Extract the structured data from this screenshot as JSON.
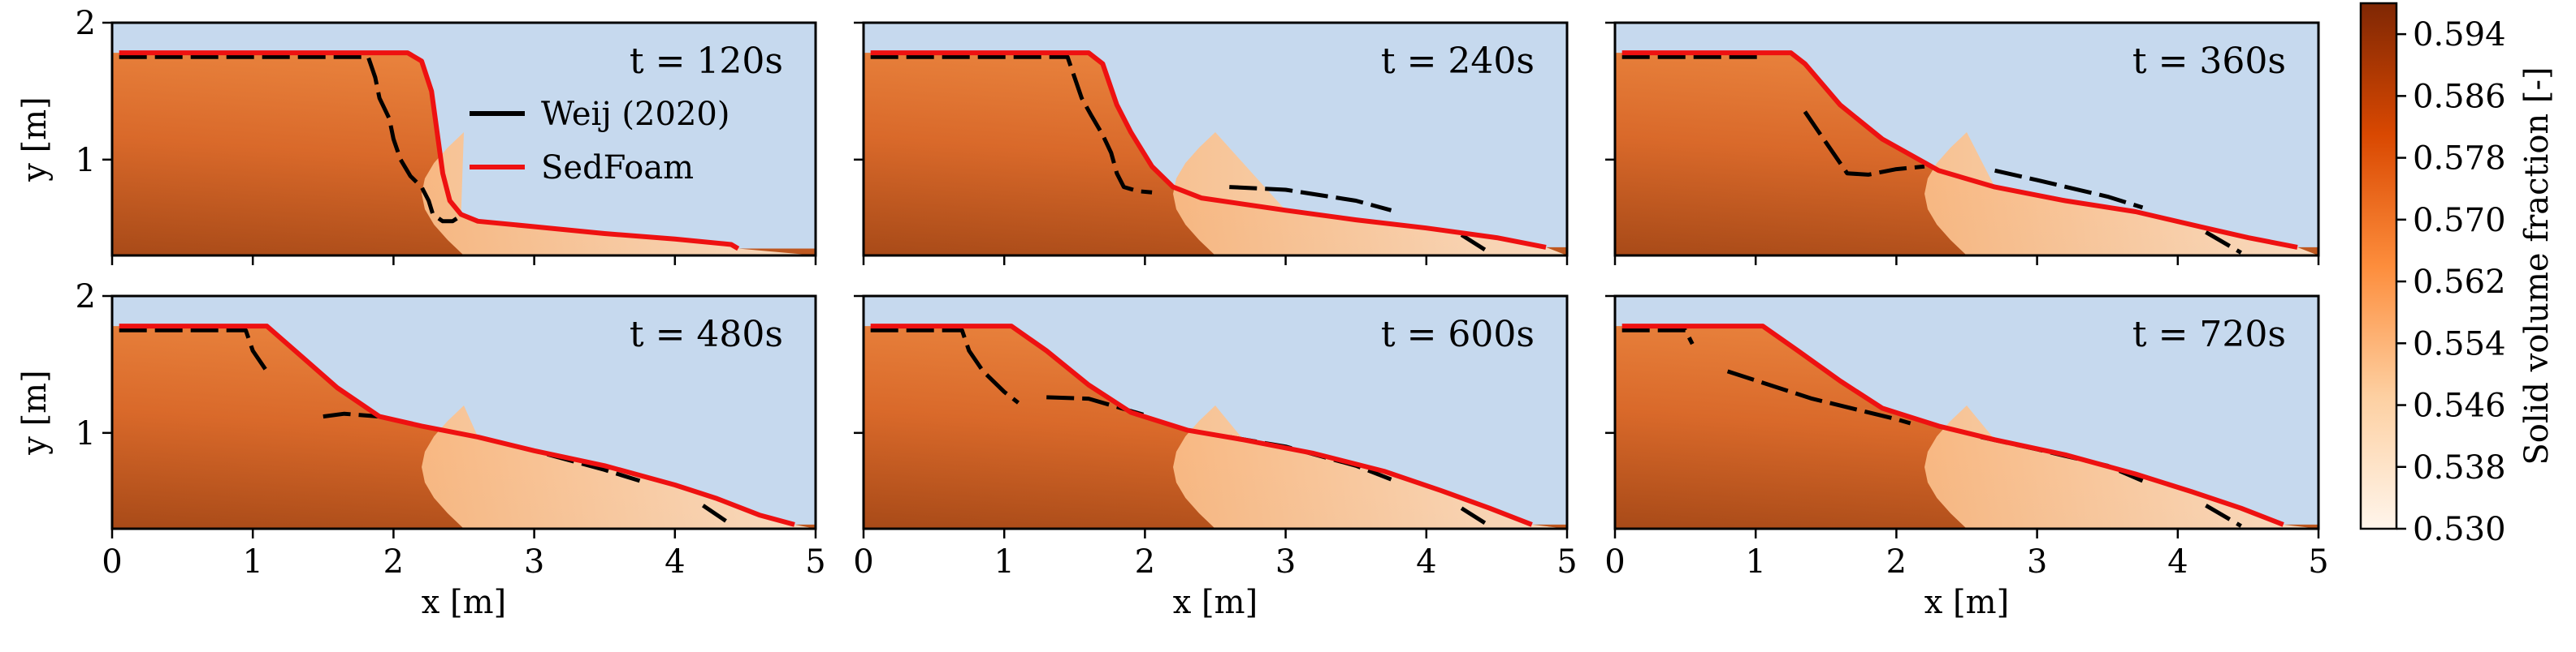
{
  "chart_data": [
    {
      "type": "line",
      "title": "t = 120s",
      "xlabel": "x [m]",
      "ylabel": "y [m]",
      "xlim": [
        0,
        5
      ],
      "ylim": [
        0.3,
        2.0
      ],
      "series": [
        {
          "name": "Weij (2020)",
          "color": "#000000",
          "style": "dashed",
          "segments": [
            [
              [
                0.05,
                1.75
              ],
              [
                1.0,
                1.75
              ],
              [
                1.82,
                1.75
              ],
              [
                1.87,
                1.6
              ],
              [
                1.9,
                1.45
              ],
              [
                1.97,
                1.3
              ],
              [
                2.0,
                1.15
              ],
              [
                2.05,
                1.0
              ],
              [
                2.12,
                0.88
              ],
              [
                2.2,
                0.8
              ],
              [
                2.25,
                0.7
              ],
              [
                2.28,
                0.6
              ],
              [
                2.35,
                0.55
              ],
              [
                2.42,
                0.55
              ],
              [
                2.45,
                0.57
              ]
            ]
          ]
        },
        {
          "name": "SedFoam",
          "color": "#ee1111",
          "style": "solid",
          "points": [
            [
              0.05,
              1.78
            ],
            [
              2.1,
              1.78
            ],
            [
              2.2,
              1.72
            ],
            [
              2.27,
              1.5
            ],
            [
              2.31,
              1.2
            ],
            [
              2.35,
              0.9
            ],
            [
              2.4,
              0.7
            ],
            [
              2.48,
              0.6
            ],
            [
              2.6,
              0.55
            ],
            [
              3.0,
              0.51
            ],
            [
              3.5,
              0.46
            ],
            [
              4.0,
              0.42
            ],
            [
              4.4,
              0.38
            ],
            [
              4.45,
              0.35
            ]
          ]
        }
      ]
    },
    {
      "type": "line",
      "title": "t = 240s",
      "xlabel": "",
      "ylabel": "",
      "xlim": [
        0,
        5
      ],
      "ylim": [
        0.3,
        2.0
      ],
      "series": [
        {
          "name": "Weij (2020)",
          "color": "#000000",
          "style": "dashed",
          "segments": [
            [
              [
                0.05,
                1.75
              ],
              [
                1.45,
                1.75
              ],
              [
                1.5,
                1.6
              ],
              [
                1.55,
                1.45
              ],
              [
                1.62,
                1.32
              ],
              [
                1.7,
                1.18
              ],
              [
                1.76,
                1.05
              ],
              [
                1.8,
                0.9
              ],
              [
                1.85,
                0.8
              ],
              [
                1.95,
                0.77
              ],
              [
                2.05,
                0.76
              ]
            ],
            [
              [
                2.6,
                0.8
              ],
              [
                3.0,
                0.78
              ],
              [
                3.5,
                0.7
              ],
              [
                3.75,
                0.63
              ]
            ],
            [
              [
                4.25,
                0.45
              ],
              [
                4.45,
                0.32
              ]
            ]
          ]
        },
        {
          "name": "SedFoam",
          "color": "#ee1111",
          "style": "solid",
          "points": [
            [
              0.05,
              1.78
            ],
            [
              1.6,
              1.78
            ],
            [
              1.7,
              1.7
            ],
            [
              1.8,
              1.4
            ],
            [
              1.9,
              1.2
            ],
            [
              2.05,
              0.95
            ],
            [
              2.2,
              0.8
            ],
            [
              2.4,
              0.72
            ],
            [
              3.0,
              0.63
            ],
            [
              3.5,
              0.56
            ],
            [
              4.0,
              0.5
            ],
            [
              4.5,
              0.43
            ],
            [
              4.85,
              0.36
            ]
          ]
        }
      ]
    },
    {
      "type": "line",
      "title": "t = 360s",
      "xlabel": "",
      "ylabel": "",
      "xlim": [
        0,
        5
      ],
      "ylim": [
        0.3,
        2.0
      ],
      "series": [
        {
          "name": "Weij (2020)",
          "color": "#000000",
          "style": "dashed",
          "segments": [
            [
              [
                0.05,
                1.75
              ],
              [
                1.05,
                1.75
              ]
            ],
            [
              [
                1.35,
                1.35
              ],
              [
                1.45,
                1.2
              ],
              [
                1.55,
                1.05
              ],
              [
                1.65,
                0.9
              ],
              [
                1.8,
                0.89
              ],
              [
                2.0,
                0.93
              ],
              [
                2.2,
                0.95
              ]
            ],
            [
              [
                2.7,
                0.92
              ],
              [
                3.0,
                0.85
              ],
              [
                3.5,
                0.73
              ],
              [
                3.75,
                0.65
              ]
            ],
            [
              [
                4.2,
                0.47
              ],
              [
                4.45,
                0.32
              ]
            ]
          ]
        },
        {
          "name": "SedFoam",
          "color": "#ee1111",
          "style": "solid",
          "points": [
            [
              0.05,
              1.78
            ],
            [
              1.25,
              1.78
            ],
            [
              1.35,
              1.7
            ],
            [
              1.6,
              1.4
            ],
            [
              1.9,
              1.15
            ],
            [
              2.3,
              0.92
            ],
            [
              2.7,
              0.8
            ],
            [
              3.2,
              0.7
            ],
            [
              3.7,
              0.62
            ],
            [
              4.2,
              0.5
            ],
            [
              4.5,
              0.43
            ],
            [
              4.85,
              0.36
            ]
          ]
        }
      ]
    },
    {
      "type": "line",
      "title": "t = 480s",
      "xlabel": "x [m]",
      "ylabel": "y [m]",
      "xlim": [
        0,
        5
      ],
      "ylim": [
        0.3,
        2.0
      ],
      "series": [
        {
          "name": "Weij (2020)",
          "color": "#000000",
          "style": "dashed",
          "segments": [
            [
              [
                0.05,
                1.75
              ],
              [
                0.95,
                1.75
              ],
              [
                1.0,
                1.6
              ],
              [
                1.1,
                1.45
              ]
            ],
            [
              [
                1.5,
                1.12
              ],
              [
                1.65,
                1.14
              ],
              [
                1.9,
                1.12
              ]
            ],
            [
              [
                2.6,
                0.97
              ],
              [
                3.0,
                0.87
              ],
              [
                3.5,
                0.73
              ],
              [
                3.75,
                0.65
              ]
            ],
            [
              [
                4.2,
                0.47
              ],
              [
                4.4,
                0.33
              ]
            ]
          ]
        },
        {
          "name": "SedFoam",
          "color": "#ee1111",
          "style": "solid",
          "points": [
            [
              0.05,
              1.78
            ],
            [
              1.1,
              1.78
            ],
            [
              1.3,
              1.6
            ],
            [
              1.6,
              1.33
            ],
            [
              1.9,
              1.12
            ],
            [
              2.2,
              1.05
            ],
            [
              2.6,
              0.97
            ],
            [
              3.0,
              0.87
            ],
            [
              3.5,
              0.76
            ],
            [
              4.0,
              0.62
            ],
            [
              4.3,
              0.52
            ],
            [
              4.6,
              0.4
            ],
            [
              4.85,
              0.33
            ]
          ]
        }
      ]
    },
    {
      "type": "line",
      "title": "t = 600s",
      "xlabel": "x [m]",
      "ylabel": "",
      "xlim": [
        0,
        5
      ],
      "ylim": [
        0.3,
        2.0
      ],
      "series": [
        {
          "name": "Weij (2020)",
          "color": "#000000",
          "style": "dashed",
          "segments": [
            [
              [
                0.05,
                1.75
              ],
              [
                0.7,
                1.75
              ],
              [
                0.75,
                1.6
              ],
              [
                0.85,
                1.45
              ],
              [
                1.0,
                1.3
              ],
              [
                1.1,
                1.22
              ]
            ],
            [
              [
                1.3,
                1.26
              ],
              [
                1.6,
                1.25
              ],
              [
                2.0,
                1.13
              ]
            ],
            [
              [
                2.6,
                0.97
              ],
              [
                3.0,
                0.9
              ],
              [
                3.5,
                0.76
              ],
              [
                3.75,
                0.66
              ]
            ],
            [
              [
                4.25,
                0.45
              ],
              [
                4.45,
                0.32
              ]
            ]
          ]
        },
        {
          "name": "SedFoam",
          "color": "#ee1111",
          "style": "solid",
          "points": [
            [
              0.05,
              1.78
            ],
            [
              1.05,
              1.78
            ],
            [
              1.3,
              1.6
            ],
            [
              1.6,
              1.35
            ],
            [
              1.9,
              1.15
            ],
            [
              2.3,
              1.02
            ],
            [
              2.7,
              0.95
            ],
            [
              3.2,
              0.85
            ],
            [
              3.7,
              0.72
            ],
            [
              4.1,
              0.58
            ],
            [
              4.45,
              0.45
            ],
            [
              4.75,
              0.33
            ]
          ]
        }
      ]
    },
    {
      "type": "line",
      "title": "t = 720s",
      "xlabel": "x [m]",
      "ylabel": "",
      "xlim": [
        0,
        5
      ],
      "ylim": [
        0.3,
        2.0
      ],
      "series": [
        {
          "name": "Weij (2020)",
          "color": "#000000",
          "style": "dashed",
          "segments": [
            [
              [
                0.05,
                1.75
              ],
              [
                0.5,
                1.75
              ],
              [
                0.55,
                1.65
              ]
            ],
            [
              [
                0.8,
                1.45
              ],
              [
                1.4,
                1.25
              ],
              [
                2.0,
                1.1
              ],
              [
                2.1,
                1.07
              ]
            ],
            [
              [
                2.6,
                0.97
              ],
              [
                3.0,
                0.88
              ],
              [
                3.5,
                0.76
              ],
              [
                3.75,
                0.65
              ]
            ],
            [
              [
                4.2,
                0.47
              ],
              [
                4.45,
                0.32
              ]
            ]
          ]
        },
        {
          "name": "SedFoam",
          "color": "#ee1111",
          "style": "solid",
          "points": [
            [
              0.05,
              1.78
            ],
            [
              1.05,
              1.78
            ],
            [
              1.3,
              1.6
            ],
            [
              1.6,
              1.38
            ],
            [
              1.9,
              1.18
            ],
            [
              2.3,
              1.05
            ],
            [
              2.7,
              0.95
            ],
            [
              3.2,
              0.84
            ],
            [
              3.7,
              0.7
            ],
            [
              4.1,
              0.57
            ],
            [
              4.45,
              0.45
            ],
            [
              4.75,
              0.33
            ]
          ]
        }
      ]
    }
  ],
  "shared": {
    "x_ticks": [
      "0",
      "1",
      "2",
      "3",
      "4",
      "5"
    ],
    "y_ticks": [
      "1",
      "2"
    ],
    "legend": [
      {
        "label": "Weij (2020)",
        "color": "#000000"
      },
      {
        "label": "SedFoam",
        "color": "#ee1111"
      }
    ],
    "colors": {
      "fluid": "#c6d9ee",
      "dense": "#a84a18",
      "light": "#fde6cd"
    }
  },
  "colorbar": {
    "label": "Solid volume fraction [-]",
    "min": 0.53,
    "max": 0.598,
    "ticks": [
      "0.594",
      "0.586",
      "0.578",
      "0.570",
      "0.562",
      "0.554",
      "0.546",
      "0.538",
      "0.530"
    ]
  }
}
